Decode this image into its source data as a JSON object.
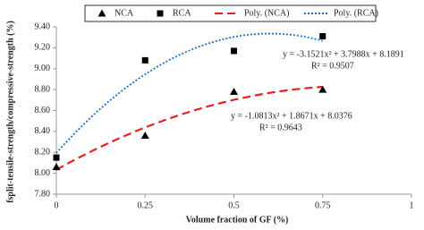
{
  "chart_data": {
    "type": "scatter",
    "x_label": "Volume fraction of GF (%)",
    "y_label": "fsplit-tensile-strength/compressive-strength (%)",
    "x": [
      0,
      0.25,
      0.5,
      0.75
    ],
    "series": [
      {
        "name": "NCA",
        "color": "#000000",
        "marker": "triangle",
        "values": [
          8.06,
          8.36,
          8.78,
          8.8
        ]
      },
      {
        "name": "RCA",
        "color": "#000000",
        "marker": "square",
        "values": [
          8.15,
          9.08,
          9.17,
          9.31
        ]
      }
    ],
    "trendlines": [
      {
        "name": "Poly. (NCA)",
        "color": "#e8201f",
        "dash": "dashed",
        "series": 0
      },
      {
        "name": "Poly. (RCA)",
        "color": "#1f6fc5",
        "dash": "dotted",
        "series": 1
      }
    ],
    "annotations": [
      "y = -3.1521x² + 3.7988x + 8.1891",
      "R² = 0.9507",
      "y = -1.0813x² + 1.8671x + 8.0376",
      "R² = 0.9643"
    ],
    "xlim": [
      0,
      1
    ],
    "xticks": [
      0,
      0.25,
      0.5,
      0.75,
      1
    ],
    "ylim": [
      7.8,
      9.4
    ],
    "yticks": [
      {
        "value": 7.8,
        "label": "7.80"
      },
      {
        "value": 8.0,
        "label": "8.00"
      },
      {
        "value": 8.2,
        "label": "8.20"
      },
      {
        "value": 8.4,
        "label": "8.40"
      },
      {
        "value": 8.6,
        "label": "8.60"
      },
      {
        "value": 8.8,
        "label": "8.80"
      },
      {
        "value": 9.0,
        "label": "9.00"
      },
      {
        "value": 9.2,
        "label": "9.20"
      },
      {
        "value": 9.4,
        "label": "9.40"
      }
    ],
    "grid": false,
    "legend": "top"
  }
}
